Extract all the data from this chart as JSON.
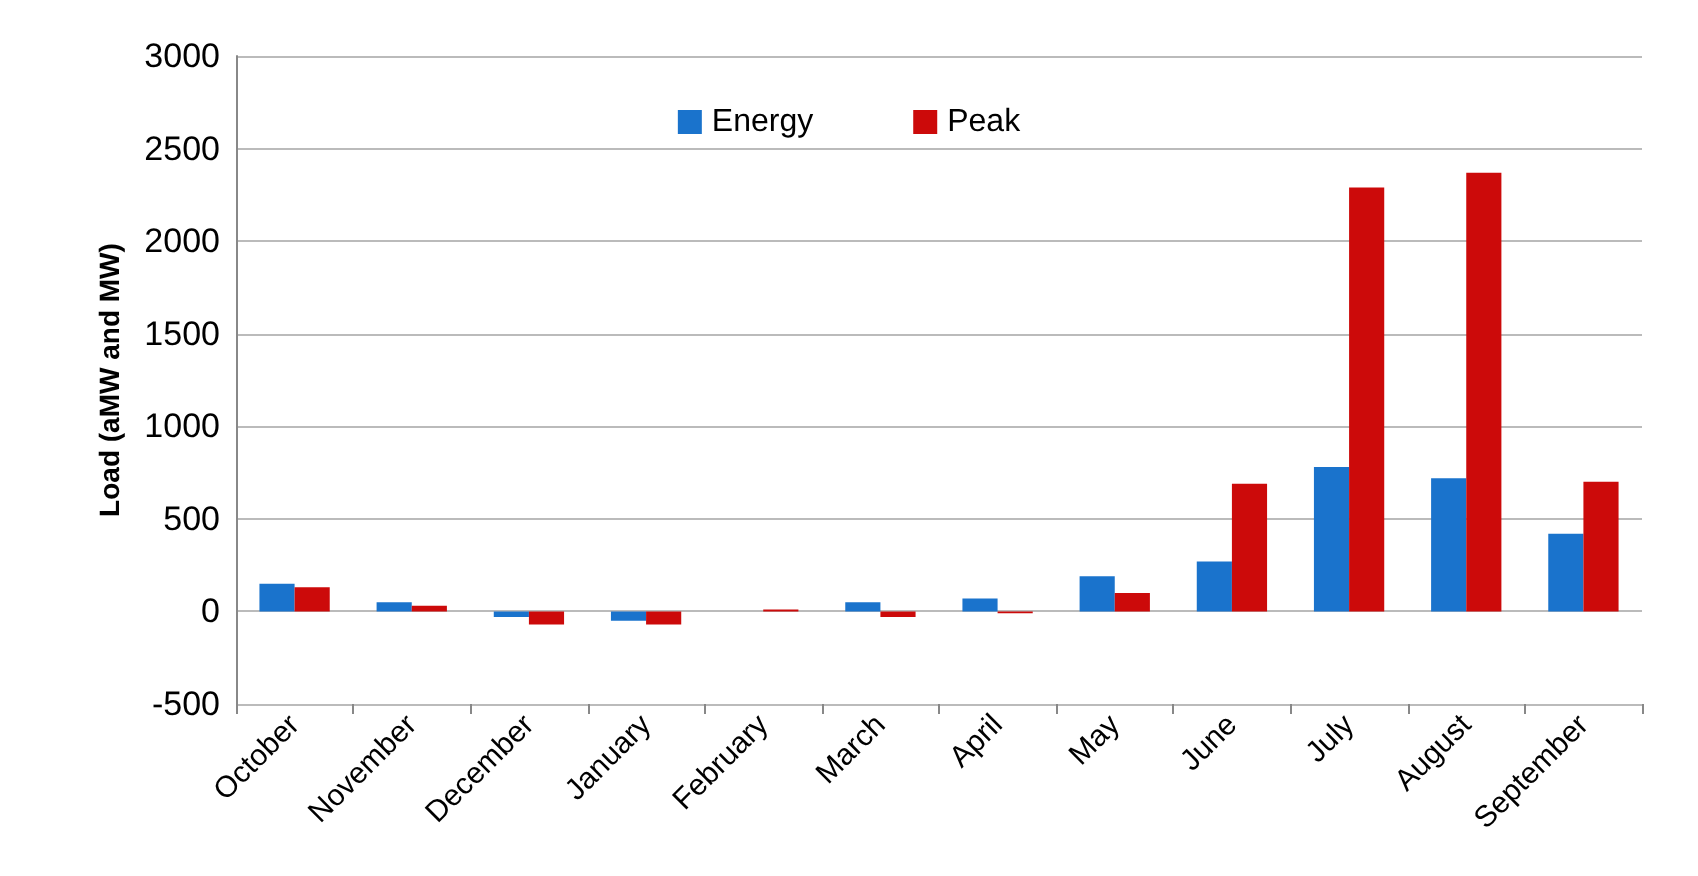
{
  "chart_data": {
    "type": "bar",
    "ylabel": "Load (aMW and MW)",
    "categories": [
      "October",
      "November",
      "December",
      "January",
      "February",
      "March",
      "April",
      "May",
      "June",
      "July",
      "August",
      "September"
    ],
    "series": [
      {
        "name": "Energy",
        "color": "#1a73cc",
        "values": [
          150,
          50,
          -30,
          -50,
          0,
          50,
          70,
          190,
          270,
          780,
          720,
          420
        ]
      },
      {
        "name": "Peak",
        "color": "#cc0a0a",
        "values": [
          130,
          30,
          -70,
          -70,
          10,
          -30,
          -10,
          100,
          690,
          2290,
          2370,
          700
        ]
      }
    ],
    "ylim": [
      -500,
      3000
    ],
    "yticks": [
      -500,
      0,
      500,
      1000,
      1500,
      2000,
      2500,
      3000
    ],
    "grid": "y",
    "legend": "top"
  }
}
